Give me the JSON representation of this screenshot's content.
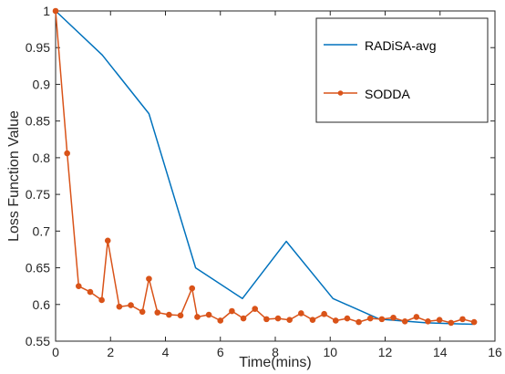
{
  "chart_data": {
    "type": "line",
    "xlabel": "Time(mins)",
    "ylabel": "Loss Function Value",
    "xlim": [
      0,
      16
    ],
    "ylim": [
      0.55,
      1
    ],
    "xticks": [
      "0",
      "2",
      "4",
      "6",
      "8",
      "10",
      "12",
      "14",
      "16"
    ],
    "yticks": [
      "0.55",
      "0.6",
      "0.65",
      "0.7",
      "0.75",
      "0.8",
      "0.85",
      "0.9",
      "0.95",
      "1"
    ],
    "grid": false,
    "legend_position": "top-right",
    "series": [
      {
        "name": "RADiSA-avg",
        "color": "#0072BD",
        "marker": "none",
        "x": [
          0,
          1.7,
          3.4,
          5.1,
          6.8,
          8.4,
          10.1,
          11.8,
          13.5,
          15.2
        ],
        "y": [
          1.0,
          0.94,
          0.86,
          0.65,
          0.608,
          0.686,
          0.608,
          0.58,
          0.575,
          0.573
        ]
      },
      {
        "name": "SODDA",
        "color": "#D95319",
        "marker": "circle",
        "x": [
          0,
          0.42,
          0.84,
          1.26,
          1.68,
          1.9,
          2.32,
          2.74,
          3.16,
          3.4,
          3.71,
          4.13,
          4.55,
          4.97,
          5.16,
          5.58,
          6.0,
          6.42,
          6.84,
          7.26,
          7.68,
          8.1,
          8.52,
          8.94,
          9.36,
          9.78,
          10.2,
          10.62,
          11.04,
          11.46,
          11.88,
          12.3,
          12.72,
          13.14,
          13.56,
          13.98,
          14.4,
          14.82,
          15.24
        ],
        "y": [
          1.0,
          0.806,
          0.625,
          0.617,
          0.606,
          0.687,
          0.597,
          0.599,
          0.59,
          0.635,
          0.589,
          0.586,
          0.585,
          0.622,
          0.583,
          0.586,
          0.578,
          0.591,
          0.581,
          0.594,
          0.58,
          0.581,
          0.579,
          0.588,
          0.579,
          0.587,
          0.578,
          0.581,
          0.576,
          0.581,
          0.58,
          0.582,
          0.577,
          0.583,
          0.577,
          0.579,
          0.575,
          0.58,
          0.576
        ]
      }
    ]
  }
}
